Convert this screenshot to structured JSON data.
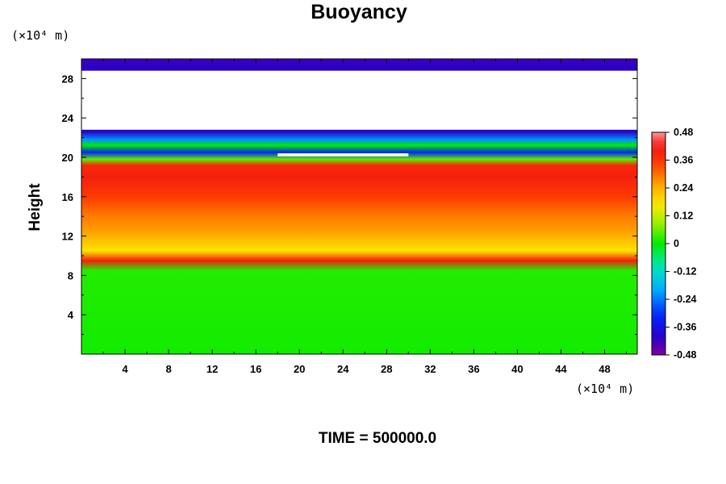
{
  "chart_data": {
    "type": "heatmap",
    "title": "Buoyancy",
    "xlabel": "",
    "ylabel": "Height",
    "x_unit": "(×10⁴ m)",
    "y_unit": "(×10⁴ m)",
    "xlim": [
      0,
      51
    ],
    "ylim": [
      0,
      30
    ],
    "x_ticks": [
      4,
      8,
      12,
      16,
      20,
      24,
      28,
      32,
      36,
      40,
      44,
      48
    ],
    "y_ticks": [
      4,
      8,
      12,
      16,
      20,
      24,
      28
    ],
    "colorbar": {
      "range": [
        -0.48,
        0.48
      ],
      "tick_values": [
        0.48,
        0.36,
        0.24,
        0.12,
        0,
        -0.12,
        -0.24,
        -0.36,
        -0.48
      ],
      "tick_labels": [
        "0.48",
        "0.36",
        "0.24",
        "0.12",
        "0",
        "-0.12",
        "-0.24",
        "-0.36",
        "-0.48"
      ]
    },
    "annotation": "TIME = 500000.0",
    "height_profile": [
      {
        "z": 0,
        "value": 0.01
      },
      {
        "z": 8.5,
        "value": 0.02
      },
      {
        "z": 9.5,
        "value": 0.4
      },
      {
        "z": 10.5,
        "value": 0.17
      },
      {
        "z": 12.5,
        "value": 0.26
      },
      {
        "z": 14,
        "value": 0.29
      },
      {
        "z": 16,
        "value": 0.35
      },
      {
        "z": 18,
        "value": 0.4
      },
      {
        "z": 19.2,
        "value": 0.38
      },
      {
        "z": 19.8,
        "value": 0.05
      },
      {
        "z": 20.5,
        "value": -0.32
      },
      {
        "z": 21.2,
        "value": 0.0
      },
      {
        "z": 21.8,
        "value": -0.22
      },
      {
        "z": 22.6,
        "value": -0.4
      },
      {
        "z": 28.8,
        "value": -0.4
      },
      {
        "z": 30,
        "value": -0.42
      }
    ],
    "blank_regions": [
      {
        "x": [
          0,
          51
        ],
        "y": [
          22.8,
          28.8
        ]
      },
      {
        "x": [
          18,
          30
        ],
        "y": [
          20.1,
          20.4
        ]
      }
    ]
  }
}
